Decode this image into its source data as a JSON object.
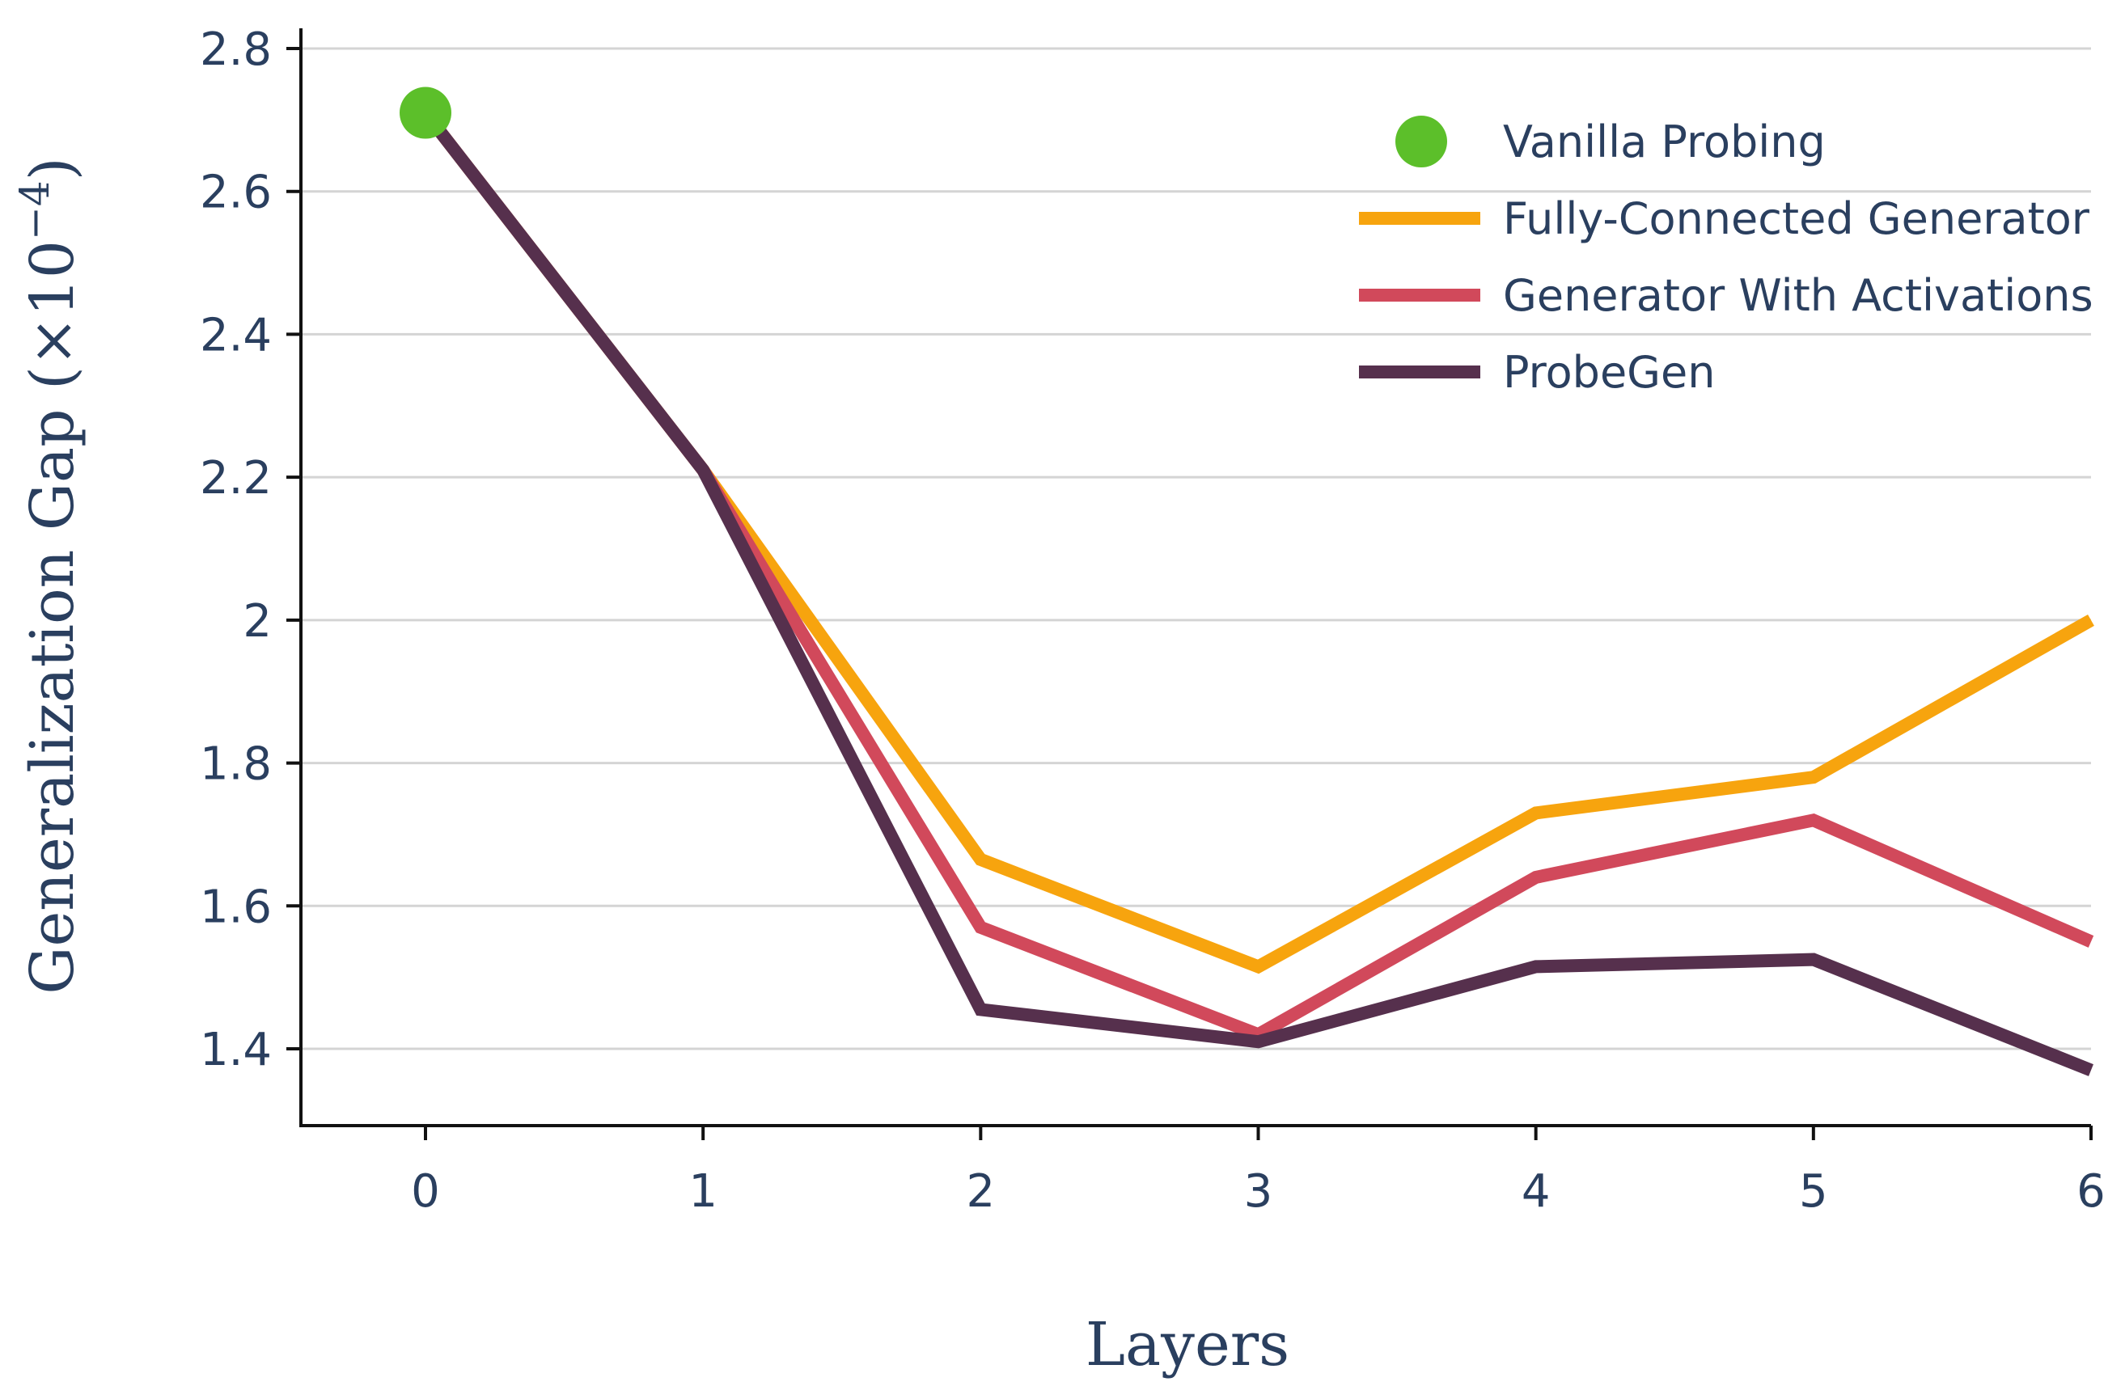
{
  "chart_data": {
    "type": "line",
    "xlabel": "Layers",
    "ylabel": "Generalization Gap (×10",
    "ylabel_exponent": "−4",
    "ylabel_close": ")",
    "x": [
      0,
      1,
      2,
      3,
      4,
      5,
      6
    ],
    "x_ticks": [
      "0",
      "1",
      "2",
      "3",
      "4",
      "5",
      "6"
    ],
    "y_ticks": [
      "1.4",
      "1.6",
      "1.8",
      "2",
      "2.2",
      "2.4",
      "2.6",
      "2.8"
    ],
    "y_tick_values": [
      1.4,
      1.6,
      1.8,
      2.0,
      2.2,
      2.4,
      2.6,
      2.8
    ],
    "xlim": [
      -0.45,
      6
    ],
    "ylim": [
      1.29,
      2.83
    ],
    "grid": true,
    "legend_position": "top-right",
    "series": [
      {
        "name": "Vanilla Probing",
        "kind": "marker",
        "color": "#5cbf2a",
        "x": [
          0
        ],
        "values": [
          2.71
        ]
      },
      {
        "name": "Fully-Connected Generator",
        "kind": "line",
        "color": "#f7a40e",
        "x": [
          0,
          1,
          2,
          3,
          4,
          5,
          6
        ],
        "values": [
          2.71,
          2.21,
          1.665,
          1.515,
          1.73,
          1.78,
          2.0
        ]
      },
      {
        "name": "Generator With Activations",
        "kind": "line",
        "color": "#d1495b",
        "x": [
          0,
          1,
          2,
          3,
          4,
          5,
          6
        ],
        "values": [
          2.71,
          2.21,
          1.57,
          1.42,
          1.64,
          1.72,
          1.55
        ]
      },
      {
        "name": "ProbeGen",
        "kind": "line",
        "color": "#56304d",
        "x": [
          0,
          1,
          2,
          3,
          4,
          5,
          6
        ],
        "values": [
          2.71,
          2.21,
          1.455,
          1.41,
          1.515,
          1.525,
          1.37
        ]
      }
    ]
  }
}
